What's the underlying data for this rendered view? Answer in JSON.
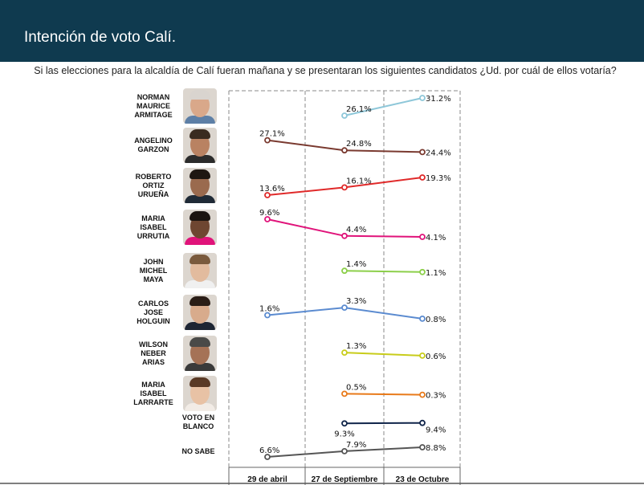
{
  "header": {
    "title": "Intención de voto Calí."
  },
  "subtitle": "Si las elecciones para la alcaldía de Calí fueran mañana y se presentaran los siguientes candidatos ¿Ud. por cuál de ellos votaría?",
  "chart_data": {
    "type": "line",
    "categories": [
      "29 de abril",
      "27 de Septiembre",
      "23 de Octubre"
    ],
    "series": [
      {
        "name": "NORMAN MAURICE ARMITAGE",
        "values": [
          null,
          26.1,
          31.2
        ],
        "labels": [
          null,
          "26.1%",
          "31.2%"
        ],
        "color": "#8ec7d9"
      },
      {
        "name": "ANGELINO GARZON",
        "values": [
          27.1,
          24.8,
          24.4
        ],
        "labels": [
          "27.1%",
          "24.8%",
          "24.4%"
        ],
        "color": "#7a3a30"
      },
      {
        "name": "ROBERTO ORTIZ URUEÑA",
        "values": [
          13.6,
          16.1,
          19.3
        ],
        "labels": [
          "13.6%",
          "16.1%",
          "19.3%"
        ],
        "color": "#e02a2a"
      },
      {
        "name": "MARIA ISABEL URRUTIA",
        "values": [
          9.6,
          4.4,
          4.1
        ],
        "labels": [
          "9.6%",
          "4.4%",
          "4.1%"
        ],
        "color": "#e0137a"
      },
      {
        "name": "JOHN MICHEL MAYA",
        "values": [
          null,
          1.4,
          1.1
        ],
        "labels": [
          null,
          "1.4%",
          "1.1%"
        ],
        "color": "#8ccf4a"
      },
      {
        "name": "CARLOS JOSE HOLGUIN",
        "values": [
          1.6,
          3.3,
          0.8
        ],
        "labels": [
          "1.6%",
          "3.3%",
          "0.8%"
        ],
        "color": "#5b8bd0"
      },
      {
        "name": "WILSON NEBER ARIAS",
        "values": [
          null,
          1.3,
          0.6
        ],
        "labels": [
          null,
          "1.3%",
          "0.6%"
        ],
        "color": "#c8cc1a"
      },
      {
        "name": "MARIA ISABEL LARRARTE",
        "values": [
          null,
          0.5,
          0.3
        ],
        "labels": [
          null,
          "0.5%",
          "0.3%"
        ],
        "color": "#e87a1a"
      },
      {
        "name": "VOTO EN BLANCO",
        "values": [
          null,
          9.3,
          9.4
        ],
        "labels": [
          null,
          "9.3%",
          "9.4%"
        ],
        "color": "#10254a"
      },
      {
        "name": "NO SABE",
        "values": [
          6.6,
          7.9,
          8.8
        ],
        "labels": [
          "6.6%",
          "7.9%",
          "8.8%"
        ],
        "color": "#555555"
      }
    ],
    "candidate_labels": [
      [
        "NORMAN",
        "MAURICE",
        "ARMITAGE"
      ],
      [
        "ANGELINO",
        "GARZON"
      ],
      [
        "ROBERTO",
        "ORTIZ",
        "URUEÑA"
      ],
      [
        "MARIA",
        "ISABEL",
        "URRUTIA"
      ],
      [
        "JOHN",
        "MICHEL",
        "MAYA"
      ],
      [
        "CARLOS",
        "JOSE",
        "HOLGUIN"
      ],
      [
        "WILSON",
        "NEBER",
        "ARIAS"
      ],
      [
        "MARIA",
        "ISABEL",
        "LARRARTE"
      ],
      [
        "VOTO EN",
        "BLANCO"
      ],
      [
        "NO SABE"
      ]
    ],
    "photos": [
      {
        "hair": "#d9d4cf",
        "shirt": "#5d7fa6",
        "skin": "#d9a88a"
      },
      {
        "hair": "#3a2b20",
        "shirt": "#2b2b2b",
        "skin": "#b98262"
      },
      {
        "hair": "#1e1712",
        "shirt": "#1f2a36",
        "skin": "#9a6a4e"
      },
      {
        "hair": "#1b1410",
        "shirt": "#e0137a",
        "skin": "#6e4631"
      },
      {
        "hair": "#7a5a3d",
        "shirt": "#f0f0f0",
        "skin": "#e2bb9e"
      },
      {
        "hair": "#2a1d16",
        "shirt": "#1e2533",
        "skin": "#d8ab8c"
      },
      {
        "hair": "#4a4a48",
        "shirt": "#3a3a3a",
        "skin": "#a57256"
      },
      {
        "hair": "#5a3a26",
        "shirt": "#f2ece6",
        "skin": "#e8c2a5"
      },
      null,
      null
    ],
    "grid": "dashed-vertical"
  }
}
